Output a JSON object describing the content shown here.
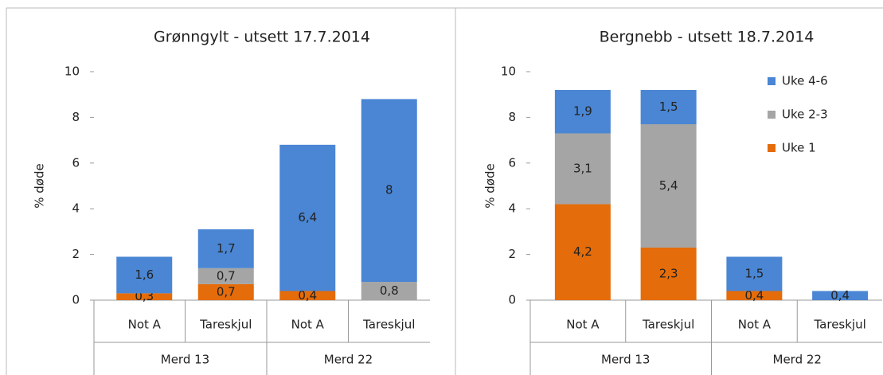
{
  "chart_data": [
    {
      "type": "stacked_bar",
      "title": "Grønngylt - utsett 17.7.2014",
      "y_label": "% døde",
      "categories": [
        "Not A",
        "Tareskjul",
        "Not A",
        "Tareskjul"
      ],
      "groups": [
        "Merd 13",
        "Merd 22"
      ],
      "ylim": [
        0,
        10
      ],
      "yticks": [
        0,
        2,
        4,
        6,
        8,
        10
      ],
      "series": [
        {
          "color": "#e46c0a",
          "values": [
            0.3,
            0.7,
            0.4,
            null
          ],
          "value_labels": [
            "0,3",
            "0,7",
            "0,4",
            null
          ]
        },
        {
          "color": "#a5a5a5",
          "values": [
            null,
            0.7,
            null,
            0.8
          ],
          "value_labels": [
            null,
            "0,7",
            null,
            "0,8"
          ]
        },
        {
          "color": "#4a86d4",
          "values": [
            1.6,
            1.7,
            6.4,
            8
          ],
          "value_labels": [
            "1,6",
            "1,7",
            "6,4",
            "8"
          ]
        }
      ]
    },
    {
      "type": "stacked_bar",
      "title": "Bergnebb - utsett 18.7.2014",
      "y_label": "% døde",
      "categories": [
        "Not A",
        "Tareskjul",
        "Not A",
        "Tareskjul"
      ],
      "groups": [
        "Merd 13",
        "Merd 22"
      ],
      "ylim": [
        0,
        10
      ],
      "yticks": [
        0,
        2,
        4,
        6,
        8,
        10
      ],
      "legend": "top-right",
      "series": [
        {
          "name": "Uke 1",
          "color": "#e46c0a",
          "values": [
            4.2,
            2.3,
            0.4,
            null
          ],
          "value_labels": [
            "4,2",
            "2,3",
            "0,4",
            null
          ]
        },
        {
          "name": "Uke 2-3",
          "color": "#a5a5a5",
          "values": [
            3.1,
            5.4,
            null,
            null
          ],
          "value_labels": [
            "3,1",
            "5,4",
            null,
            null
          ]
        },
        {
          "name": "Uke 4-6",
          "color": "#4a86d4",
          "values": [
            1.9,
            1.5,
            1.5,
            0.4
          ],
          "value_labels": [
            "1,9",
            "1,5",
            "1,5",
            "0,4"
          ]
        }
      ]
    }
  ]
}
